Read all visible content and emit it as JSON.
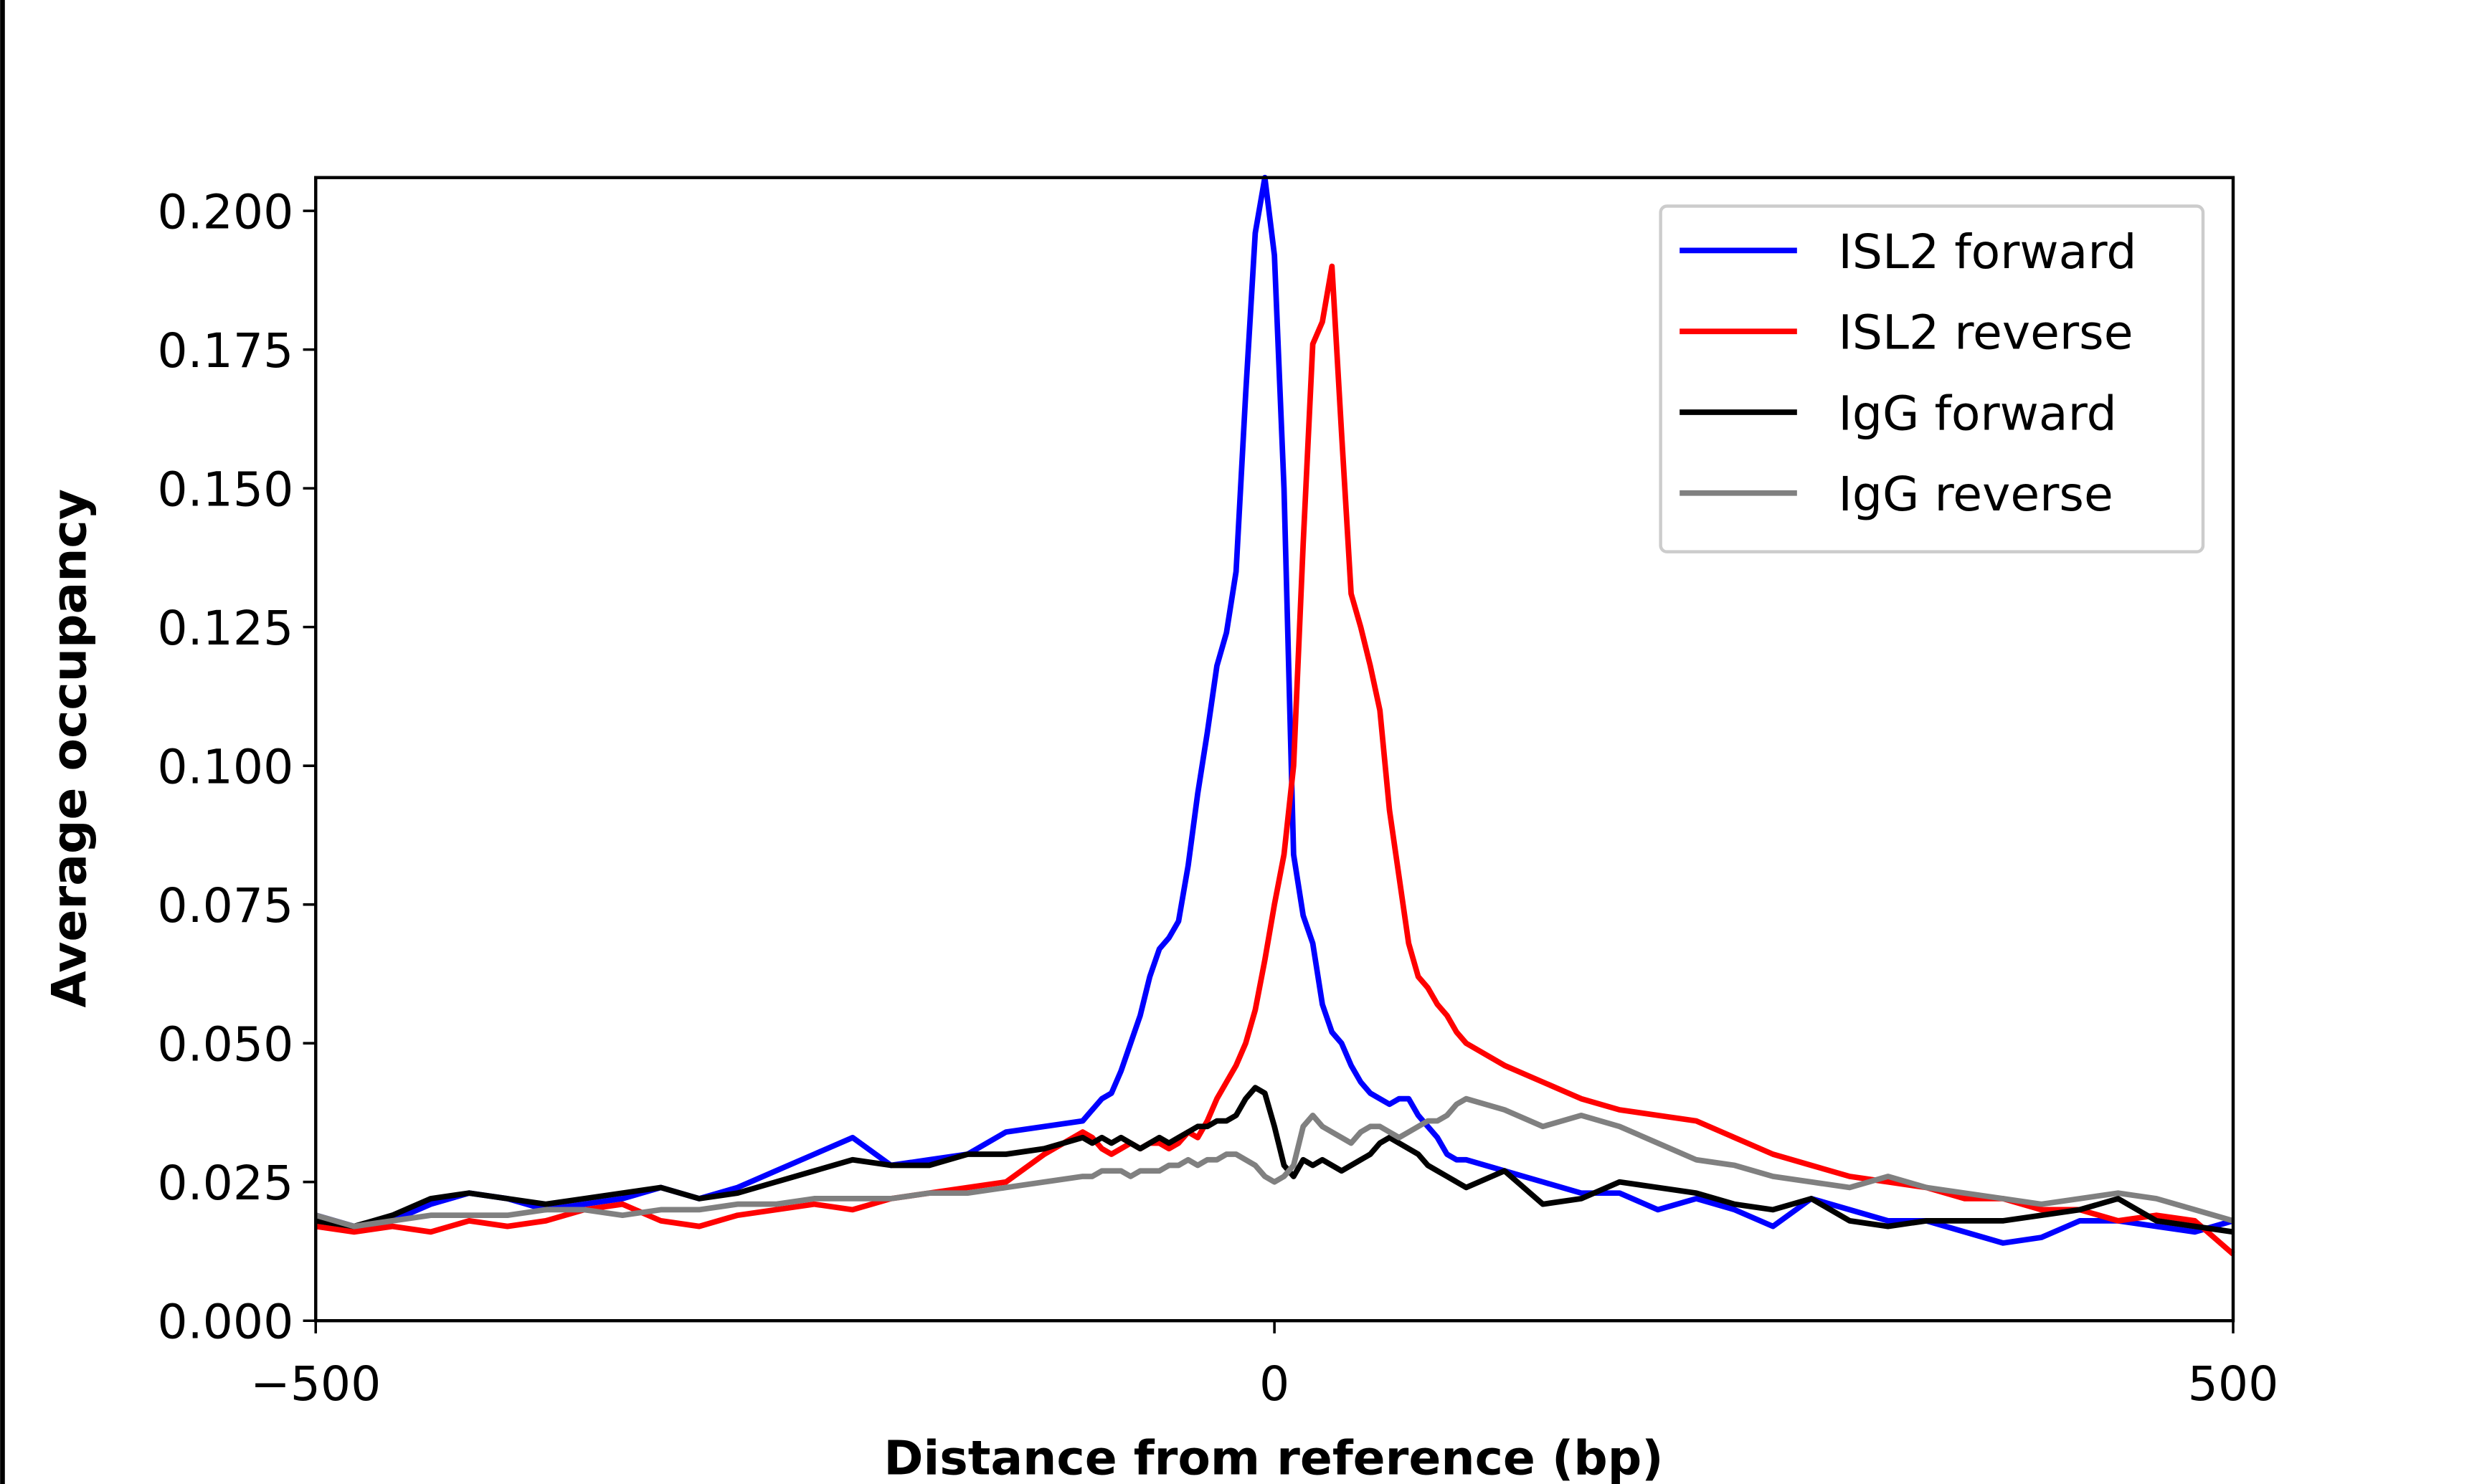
{
  "chart_data": {
    "type": "line",
    "xlabel": "Distance from reference (bp)",
    "ylabel": "Average occupancy",
    "xlim": [
      -500,
      500
    ],
    "ylim": [
      0,
      0.206
    ],
    "xticks": [
      {
        "value": -500,
        "label": "−500"
      },
      0,
      500
    ],
    "yticks": [
      {
        "value": 0,
        "label": "0.000"
      },
      0.025,
      {
        "value": 0.05,
        "label": "0.050"
      },
      0.075,
      {
        "value": 0.1,
        "label": "0.100"
      },
      0.125,
      {
        "value": 0.15,
        "label": "0.150"
      },
      0.175,
      {
        "value": 0.2,
        "label": "0.200"
      }
    ],
    "legend": "upper right",
    "x": [
      -500,
      -480,
      -460,
      -440,
      -420,
      -400,
      -380,
      -360,
      -340,
      -320,
      -300,
      -280,
      -260,
      -240,
      -220,
      -200,
      -180,
      -160,
      -140,
      -120,
      -100,
      -95,
      -90,
      -85,
      -80,
      -75,
      -70,
      -65,
      -60,
      -55,
      -50,
      -45,
      -40,
      -35,
      -30,
      -25,
      -20,
      -15,
      -10,
      -5,
      0,
      5,
      10,
      15,
      20,
      25,
      30,
      35,
      40,
      45,
      50,
      55,
      60,
      65,
      70,
      75,
      80,
      85,
      90,
      95,
      100,
      120,
      140,
      160,
      180,
      200,
      220,
      240,
      260,
      280,
      300,
      320,
      340,
      360,
      380,
      400,
      420,
      440,
      460,
      480,
      500
    ],
    "series": [
      {
        "name": "ISL2 forward",
        "color": "#0000ff",
        "values": [
          0.019,
          0.017,
          0.018,
          0.021,
          0.023,
          0.022,
          0.02,
          0.021,
          0.022,
          0.024,
          0.022,
          0.024,
          0.027,
          0.03,
          0.033,
          0.028,
          0.029,
          0.03,
          0.034,
          0.035,
          0.036,
          0.038,
          0.04,
          0.041,
          0.045,
          0.05,
          0.055,
          0.062,
          0.067,
          0.069,
          0.072,
          0.082,
          0.095,
          0.106,
          0.118,
          0.124,
          0.135,
          0.167,
          0.196,
          0.206,
          0.192,
          0.15,
          0.084,
          0.073,
          0.068,
          0.057,
          0.052,
          0.05,
          0.046,
          0.043,
          0.041,
          0.04,
          0.039,
          0.04,
          0.04,
          0.037,
          0.035,
          0.033,
          0.03,
          0.029,
          0.029,
          0.027,
          0.025,
          0.023,
          0.023,
          0.02,
          0.022,
          0.02,
          0.017,
          0.022,
          0.02,
          0.018,
          0.018,
          0.016,
          0.014,
          0.015,
          0.018,
          0.018,
          0.017,
          0.016,
          0.018
        ]
      },
      {
        "name": "ISL2 reverse",
        "color": "#ff0000",
        "values": [
          0.017,
          0.016,
          0.017,
          0.016,
          0.018,
          0.017,
          0.018,
          0.02,
          0.021,
          0.018,
          0.017,
          0.019,
          0.02,
          0.021,
          0.02,
          0.022,
          0.023,
          0.024,
          0.025,
          0.03,
          0.034,
          0.033,
          0.031,
          0.03,
          0.031,
          0.032,
          0.031,
          0.032,
          0.032,
          0.031,
          0.032,
          0.034,
          0.033,
          0.036,
          0.04,
          0.043,
          0.046,
          0.05,
          0.056,
          0.065,
          0.075,
          0.084,
          0.1,
          0.14,
          0.176,
          0.18,
          0.19,
          0.16,
          0.131,
          0.125,
          0.118,
          0.11,
          0.092,
          0.08,
          0.068,
          0.062,
          0.06,
          0.057,
          0.055,
          0.052,
          0.05,
          0.046,
          0.043,
          0.04,
          0.038,
          0.037,
          0.036,
          0.033,
          0.03,
          0.028,
          0.026,
          0.025,
          0.024,
          0.022,
          0.022,
          0.02,
          0.02,
          0.018,
          0.019,
          0.018,
          0.012
        ]
      },
      {
        "name": "IgG forward",
        "color": "#000000",
        "values": [
          0.018,
          0.017,
          0.019,
          0.022,
          0.023,
          0.022,
          0.021,
          0.022,
          0.023,
          0.024,
          0.022,
          0.023,
          0.025,
          0.027,
          0.029,
          0.028,
          0.028,
          0.03,
          0.03,
          0.031,
          0.033,
          0.032,
          0.033,
          0.032,
          0.033,
          0.032,
          0.031,
          0.032,
          0.033,
          0.032,
          0.033,
          0.034,
          0.035,
          0.035,
          0.036,
          0.036,
          0.037,
          0.04,
          0.042,
          0.041,
          0.035,
          0.028,
          0.026,
          0.029,
          0.028,
          0.029,
          0.028,
          0.027,
          0.028,
          0.029,
          0.03,
          0.032,
          0.033,
          0.032,
          0.031,
          0.03,
          0.028,
          0.027,
          0.026,
          0.025,
          0.024,
          0.027,
          0.021,
          0.022,
          0.025,
          0.024,
          0.023,
          0.021,
          0.02,
          0.022,
          0.018,
          0.017,
          0.018,
          0.018,
          0.018,
          0.019,
          0.02,
          0.022,
          0.018,
          0.017,
          0.016
        ]
      },
      {
        "name": "IgG reverse",
        "color": "#808080",
        "values": [
          0.019,
          0.017,
          0.018,
          0.019,
          0.019,
          0.019,
          0.02,
          0.02,
          0.019,
          0.02,
          0.02,
          0.021,
          0.021,
          0.022,
          0.022,
          0.022,
          0.023,
          0.023,
          0.024,
          0.025,
          0.026,
          0.026,
          0.027,
          0.027,
          0.027,
          0.026,
          0.027,
          0.027,
          0.027,
          0.028,
          0.028,
          0.029,
          0.028,
          0.029,
          0.029,
          0.03,
          0.03,
          0.029,
          0.028,
          0.026,
          0.025,
          0.026,
          0.028,
          0.035,
          0.037,
          0.035,
          0.034,
          0.033,
          0.032,
          0.034,
          0.035,
          0.035,
          0.034,
          0.033,
          0.034,
          0.035,
          0.036,
          0.036,
          0.037,
          0.039,
          0.04,
          0.038,
          0.035,
          0.037,
          0.035,
          0.032,
          0.029,
          0.028,
          0.026,
          0.025,
          0.024,
          0.026,
          0.024,
          0.023,
          0.022,
          0.021,
          0.022,
          0.023,
          0.022,
          0.02,
          0.018
        ]
      }
    ]
  }
}
